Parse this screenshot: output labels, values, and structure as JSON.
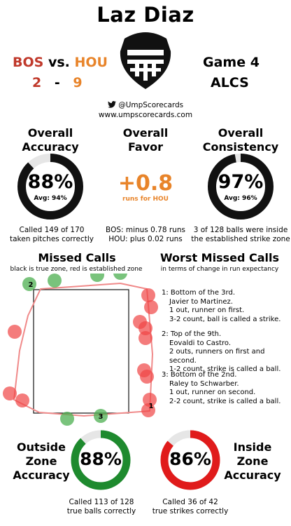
{
  "header": {
    "umpire_name": "Laz Diaz",
    "away_team": "BOS",
    "vs_text": "vs.",
    "home_team": "HOU",
    "away_score": "2",
    "score_sep": "-",
    "home_score": "9",
    "game": "Game 4",
    "series": "ALCS",
    "twitter_handle": "@UmpScorecards",
    "website": "www.umpscorecards.com"
  },
  "stats": {
    "accuracy": {
      "title_line1": "Overall",
      "title_line2": "Accuracy",
      "value": "88%",
      "avg": "Avg: 94%",
      "fraction": 0.88,
      "caption_line1": "Called 149 of 170",
      "caption_line2": "taken pitches correctly"
    },
    "favor": {
      "title_line1": "Overall",
      "title_line2": "Favor",
      "value": "+0.8",
      "unit": "runs for HOU",
      "caption_line1": "BOS: minus 0.78 runs",
      "caption_line2": "HOU: plus 0.02 runs"
    },
    "consistency": {
      "title_line1": "Overall",
      "title_line2": "Consistency",
      "value": "97%",
      "avg": "Avg: 96%",
      "fraction": 0.97,
      "caption_line1": "3 of 128 balls were inside",
      "caption_line2": "the established strike zone"
    }
  },
  "missed_calls": {
    "title": "Missed Calls",
    "subtitle": "black is true zone, red is established zone",
    "markers": [
      "1",
      "2",
      "3"
    ]
  },
  "worst_calls": {
    "title": "Worst Missed Calls",
    "subtitle": "in terms of change in run expectancy",
    "items": [
      {
        "line1": "1: Bottom of the 3rd.",
        "line2": "Javier to Martinez.",
        "line3": "1 out, runner on first.",
        "line4": "3-2 count, ball is called a strike."
      },
      {
        "line1": "2: Top of the 9th.",
        "line2": "Eovaldi to Castro.",
        "line3": "2 outs, runners on first and second.",
        "line4": "1-2 count, strike is called a ball."
      },
      {
        "line1": "3: Bottom of the 2nd.",
        "line2": "Raley to Schwarber.",
        "line3": "1 out, runner on second.",
        "line4": "2-2 count, strike is called a ball."
      }
    ]
  },
  "zone_accuracy": {
    "outside": {
      "title_line1": "Outside",
      "title_line2": "Zone",
      "title_line3": "Accuracy",
      "value": "88%",
      "fraction": 0.88,
      "caption_line1": "Called 113 of 128",
      "caption_line2": "true balls correctly"
    },
    "inside": {
      "title_line1": "Inside",
      "title_line2": "Zone",
      "title_line3": "Accuracy",
      "value": "86%",
      "fraction": 0.86,
      "caption_line1": "Called 36 of 42",
      "caption_line2": "true strikes correctly"
    }
  },
  "colors": {
    "red_team": "#c0392b",
    "orange": "#e8842a",
    "green_ring": "#1e8a2e",
    "red_ring": "#e01b1b",
    "green_dot": "#4caf50",
    "red_dot": "#f04545",
    "zone_line": "#f08a8a"
  },
  "icons": [
    "umpire-mask-icon",
    "twitter-bird-icon"
  ]
}
